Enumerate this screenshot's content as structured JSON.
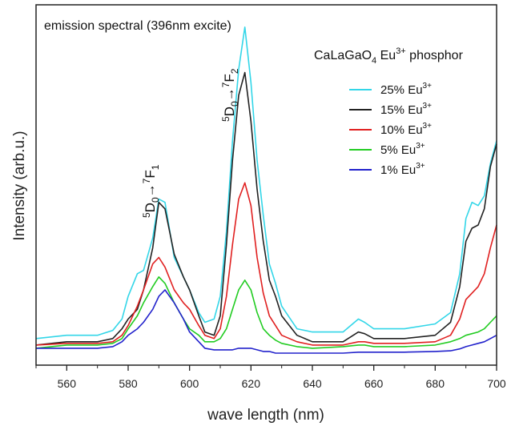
{
  "chart_data": {
    "type": "line",
    "title": "emission spectral (396nm excite)",
    "subtitle": "CaLaGaO4 Eu3+ phosphor",
    "subtitle_parts": {
      "base": "CaLaGaO",
      "sub": "4",
      "mid": " Eu",
      "sup": "3+",
      "tail": " phosphor"
    },
    "xlabel": "wave length (nm)",
    "ylabel": "Intensity (arb.u.)",
    "xlim": [
      550,
      700
    ],
    "ylim": [
      0,
      1
    ],
    "xticks": [
      560,
      580,
      600,
      620,
      640,
      660,
      680,
      700
    ],
    "legend_position": "top-right",
    "grid": false,
    "annotations": [
      {
        "text": "5D0→7F1",
        "x": 590,
        "rotated": true
      },
      {
        "text": "5D0→7F2",
        "x": 618,
        "rotated": true
      }
    ],
    "x": [
      550,
      560,
      570,
      575,
      578,
      580,
      583,
      585,
      588,
      590,
      592,
      595,
      598,
      600,
      603,
      605,
      608,
      610,
      612,
      614,
      616,
      618,
      620,
      622,
      624,
      626,
      628,
      630,
      635,
      640,
      650,
      655,
      657,
      660,
      670,
      680,
      685,
      688,
      690,
      692,
      694,
      696,
      698,
      700
    ],
    "series": [
      {
        "name": "25% Eu3+",
        "label_base": "25% Eu",
        "label_sup": "3+",
        "color": "#33d6e8",
        "values": [
          0.05,
          0.06,
          0.06,
          0.075,
          0.11,
          0.18,
          0.25,
          0.26,
          0.36,
          0.48,
          0.47,
          0.3,
          0.24,
          0.2,
          0.13,
          0.1,
          0.11,
          0.18,
          0.38,
          0.66,
          0.88,
          1.01,
          0.84,
          0.6,
          0.43,
          0.28,
          0.22,
          0.15,
          0.08,
          0.07,
          0.07,
          0.11,
          0.1,
          0.08,
          0.08,
          0.095,
          0.13,
          0.25,
          0.42,
          0.47,
          0.46,
          0.49,
          0.59,
          0.66
        ]
      },
      {
        "name": "15% Eu3+",
        "label_base": "15% Eu",
        "label_sup": "3+",
        "color": "#222222",
        "values": [
          0.03,
          0.04,
          0.04,
          0.05,
          0.08,
          0.11,
          0.14,
          0.2,
          0.33,
          0.47,
          0.45,
          0.31,
          0.24,
          0.2,
          0.12,
          0.07,
          0.06,
          0.12,
          0.34,
          0.6,
          0.8,
          0.87,
          0.72,
          0.51,
          0.35,
          0.23,
          0.18,
          0.12,
          0.06,
          0.04,
          0.04,
          0.07,
          0.065,
          0.05,
          0.05,
          0.06,
          0.1,
          0.21,
          0.35,
          0.39,
          0.4,
          0.45,
          0.58,
          0.65
        ]
      },
      {
        "name": "10% Eu3+",
        "label_base": "10% Eu",
        "label_sup": "3+",
        "color": "#e02020",
        "values": [
          0.03,
          0.035,
          0.035,
          0.04,
          0.06,
          0.09,
          0.15,
          0.2,
          0.28,
          0.3,
          0.27,
          0.2,
          0.16,
          0.14,
          0.09,
          0.06,
          0.05,
          0.08,
          0.18,
          0.34,
          0.48,
          0.53,
          0.46,
          0.3,
          0.19,
          0.12,
          0.09,
          0.06,
          0.04,
          0.03,
          0.03,
          0.04,
          0.04,
          0.035,
          0.035,
          0.04,
          0.06,
          0.11,
          0.17,
          0.19,
          0.21,
          0.25,
          0.33,
          0.4
        ]
      },
      {
        "name": "5% Eu3+",
        "label_base": "5% Eu",
        "label_sup": "3+",
        "color": "#22cc22",
        "values": [
          0.02,
          0.03,
          0.03,
          0.035,
          0.05,
          0.08,
          0.12,
          0.16,
          0.21,
          0.24,
          0.22,
          0.16,
          0.11,
          0.08,
          0.06,
          0.04,
          0.04,
          0.05,
          0.08,
          0.14,
          0.2,
          0.23,
          0.2,
          0.13,
          0.08,
          0.06,
          0.045,
          0.035,
          0.025,
          0.02,
          0.025,
          0.03,
          0.03,
          0.025,
          0.025,
          0.03,
          0.04,
          0.05,
          0.06,
          0.065,
          0.07,
          0.08,
          0.1,
          0.12
        ]
      },
      {
        "name": "1% Eu3+",
        "label_base": "1% Eu",
        "label_sup": "3+",
        "color": "#2222cc",
        "values": [
          0.02,
          0.02,
          0.02,
          0.025,
          0.04,
          0.06,
          0.08,
          0.1,
          0.14,
          0.18,
          0.2,
          0.16,
          0.11,
          0.07,
          0.04,
          0.02,
          0.015,
          0.015,
          0.015,
          0.015,
          0.02,
          0.02,
          0.02,
          0.015,
          0.01,
          0.01,
          0.005,
          0.005,
          0.005,
          0.005,
          0.005,
          0.008,
          0.008,
          0.008,
          0.008,
          0.01,
          0.012,
          0.018,
          0.025,
          0.03,
          0.035,
          0.04,
          0.05,
          0.06
        ]
      }
    ]
  }
}
